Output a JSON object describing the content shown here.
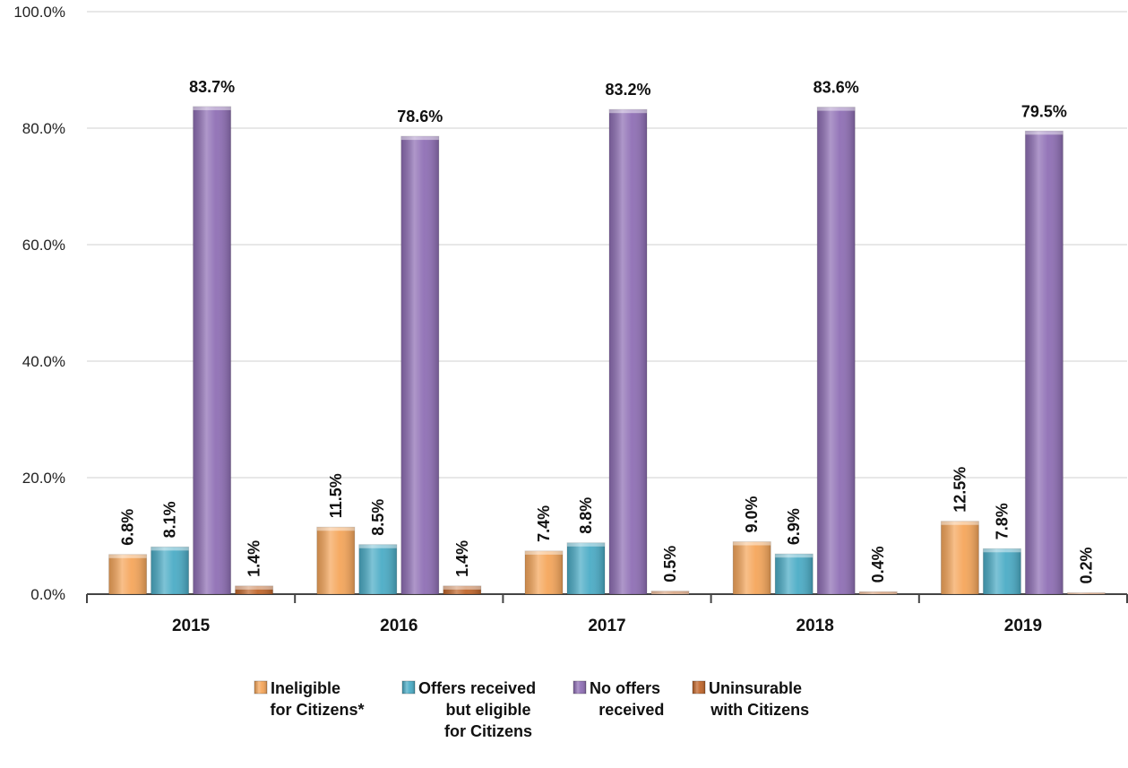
{
  "chart_data": {
    "type": "bar",
    "title": "",
    "xlabel": "",
    "ylabel": "",
    "ylim": [
      0,
      100
    ],
    "y_ticks": [
      "0.0%",
      "20.0%",
      "40.0%",
      "60.0%",
      "80.0%",
      "100.0%"
    ],
    "grid": true,
    "legend_position": "bottom",
    "categories": [
      "2015",
      "2016",
      "2017",
      "2018",
      "2019"
    ],
    "series": [
      {
        "name": "Ineligible for Citizens*",
        "legend_lines": [
          "Ineligible",
          "for Citizens*"
        ],
        "color": "#F5A65B",
        "values": [
          6.8,
          11.5,
          7.4,
          9.0,
          12.5
        ],
        "labels": [
          "6.8%",
          "11.5%",
          "7.4%",
          "9.0%",
          "12.5%"
        ]
      },
      {
        "name": "Offers received but eligible for Citizens",
        "legend_lines": [
          "Offers received",
          "but eligible",
          "for Citizens"
        ],
        "color": "#4BACC6",
        "values": [
          8.1,
          8.5,
          8.8,
          6.9,
          7.8
        ],
        "labels": [
          "8.1%",
          "8.5%",
          "8.8%",
          "6.9%",
          "7.8%"
        ]
      },
      {
        "name": "No offers received",
        "legend_lines": [
          "No offers",
          "received"
        ],
        "color": "#8F6FB5",
        "values": [
          83.7,
          78.6,
          83.2,
          83.6,
          79.5
        ],
        "labels": [
          "83.7%",
          "78.6%",
          "83.2%",
          "83.6%",
          "79.5%"
        ]
      },
      {
        "name": "Uninsurable with Citizens",
        "legend_lines": [
          "Uninsurable",
          "with Citizens"
        ],
        "color": "#C0662B",
        "values": [
          1.4,
          1.4,
          0.5,
          0.4,
          0.2
        ],
        "labels": [
          "1.4%",
          "1.4%",
          "0.5%",
          "0.4%",
          "0.2%"
        ]
      }
    ]
  }
}
